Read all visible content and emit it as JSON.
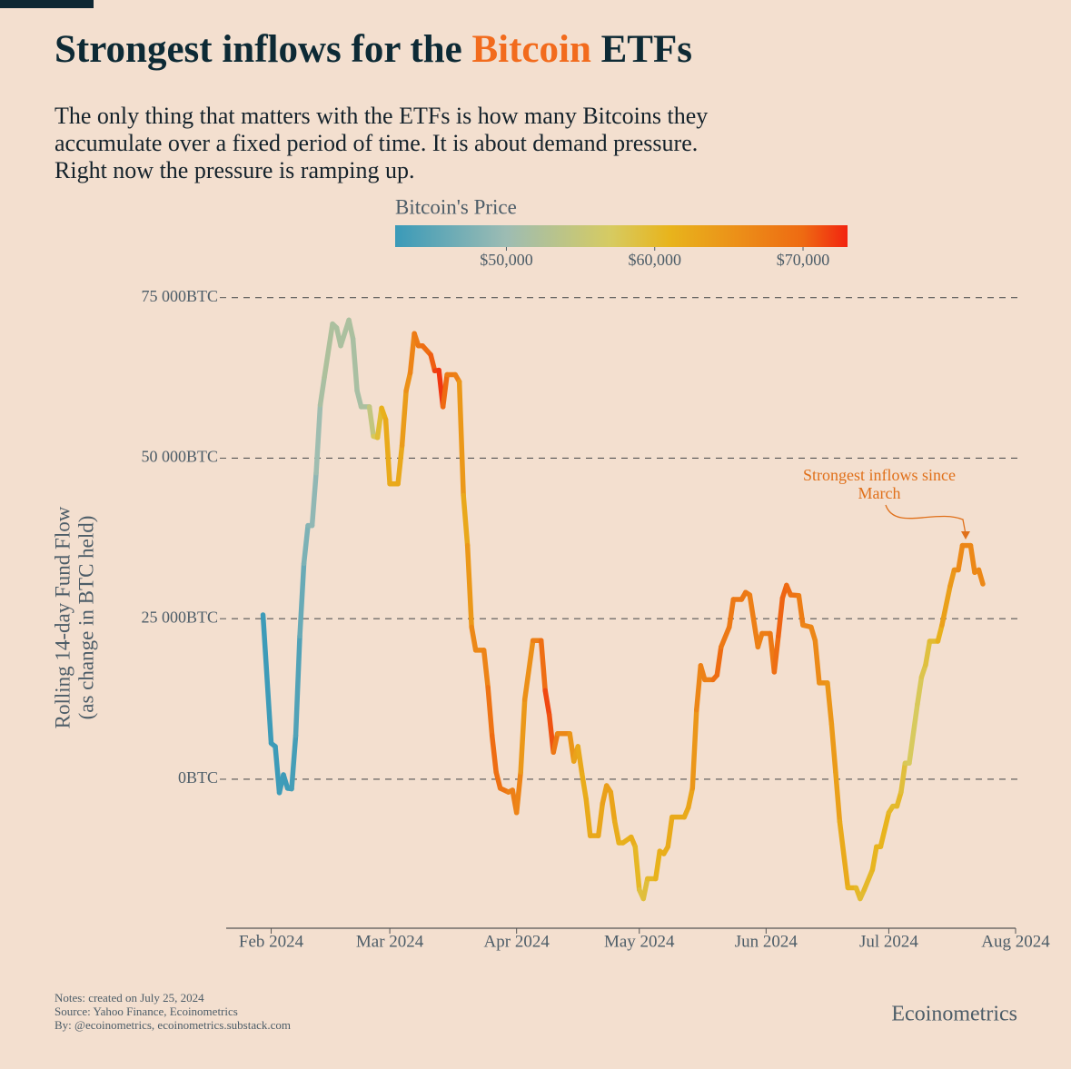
{
  "chart_data": {
    "type": "line",
    "title": [
      "Strongest inflows for the",
      "Bitcoin",
      "ETFs"
    ],
    "subtitle": [
      "The only thing that matters with the ETFs is how many Bitcoins they",
      "accumulate over a fixed period of time. It is about demand pressure.",
      "Right now the pressure is ramping up."
    ],
    "y_label": [
      "Rolling 14-day Fund Flow",
      "(as change in BTC held)"
    ],
    "colorbar_title": "Bitcoin's Price",
    "color_stops": [
      [
        42500,
        "#3a9ab8"
      ],
      [
        50000,
        "#9dbcb3"
      ],
      [
        57000,
        "#d6cb62"
      ],
      [
        61000,
        "#e8b41c"
      ],
      [
        66000,
        "#ec8c18"
      ],
      [
        70000,
        "#ee6a12"
      ],
      [
        73000,
        "#f22410"
      ]
    ],
    "color_lim": [
      42500,
      73000
    ],
    "color_ticks": [
      {
        "value": 50000,
        "label": "$50,000"
      },
      {
        "value": 60000,
        "label": "$60,000"
      },
      {
        "value": 70000,
        "label": "$70,000"
      }
    ],
    "annotation": [
      "Strongest inflows since",
      "March"
    ],
    "notes": [
      "Notes: created on July 25, 2024",
      "Source: Yahoo Finance, Ecoinometrics",
      "By: @ecoinometrics, ecoinometrics.substack.com"
    ],
    "brand": "Ecoinometrics",
    "xlim": [
      21,
      214
    ],
    "xticks": [
      {
        "value": 32,
        "label": "Feb 2024"
      },
      {
        "value": 61,
        "label": "Mar 2024"
      },
      {
        "value": 92,
        "label": "Apr 2024"
      },
      {
        "value": 122,
        "label": "May 2024"
      },
      {
        "value": 153,
        "label": "Jun 2024"
      },
      {
        "value": 183,
        "label": "Jul 2024"
      },
      {
        "value": 214,
        "label": "Aug 2024"
      }
    ],
    "ylim": [
      -23200,
      77500
    ],
    "yticks": [
      {
        "value": 0,
        "label": "0BTC"
      },
      {
        "value": 25000,
        "label": "25 000BTC"
      },
      {
        "value": 50000,
        "label": "50 000BTC"
      },
      {
        "value": 75000,
        "label": "75 000BTC"
      }
    ],
    "grid": true,
    "x": [
      30,
      32,
      33,
      34,
      35,
      36,
      37,
      38,
      39,
      40,
      41,
      42,
      43,
      44,
      45,
      47,
      48,
      49,
      51,
      52,
      53,
      54,
      56,
      57,
      58,
      59,
      60,
      61,
      63,
      64,
      65,
      66,
      67,
      68,
      69,
      71,
      72,
      73,
      74,
      75,
      77,
      78,
      79,
      80,
      81,
      82,
      84,
      85,
      86,
      87,
      88,
      90,
      91,
      92,
      93,
      94,
      96,
      98,
      99,
      100,
      101,
      102,
      105,
      106,
      107,
      108,
      109,
      110,
      112,
      113,
      114,
      115,
      116,
      117,
      118,
      120,
      121,
      122,
      123,
      124,
      126,
      127,
      128,
      129,
      130,
      133,
      134,
      135,
      136,
      137,
      138,
      140,
      141,
      142,
      144,
      145,
      147,
      148,
      149,
      151,
      152,
      154,
      155,
      156,
      157,
      158,
      159,
      161,
      162,
      164,
      165,
      166,
      168,
      169,
      170,
      171,
      173,
      175,
      176,
      177,
      179,
      180,
      181,
      183,
      184,
      185,
      186,
      187,
      188,
      190,
      191,
      192,
      193,
      195,
      196,
      198,
      199,
      200,
      201,
      203,
      204,
      205,
      206
    ],
    "values": [
      25600,
      5600,
      5100,
      -2100,
      700,
      -1400,
      -1500,
      6800,
      22300,
      33600,
      39500,
      39500,
      47700,
      58300,
      62600,
      70900,
      70300,
      67500,
      71500,
      68600,
      60500,
      58000,
      58000,
      53400,
      53200,
      57800,
      56000,
      46000,
      46000,
      52000,
      60500,
      63300,
      69400,
      67500,
      67500,
      66100,
      63600,
      63700,
      58000,
      63000,
      63000,
      61900,
      44200,
      36400,
      23700,
      20100,
      20100,
      14300,
      6800,
      1100,
      -1400,
      -2000,
      -1700,
      -5200,
      1100,
      12400,
      21600,
      21600,
      13800,
      10000,
      4200,
      7100,
      7100,
      2800,
      5100,
      800,
      -3100,
      -8800,
      -8800,
      -3800,
      -1000,
      -2000,
      -6600,
      -9900,
      -9900,
      -9000,
      -10500,
      -17200,
      -18600,
      -15500,
      -15500,
      -11200,
      -11600,
      -10500,
      -5900,
      -5900,
      -4400,
      -1400,
      10800,
      17700,
      15500,
      15500,
      16200,
      20600,
      23700,
      28000,
      28000,
      29100,
      28700,
      20600,
      22700,
      22700,
      16700,
      22300,
      28200,
      30200,
      28700,
      28600,
      24000,
      23700,
      21600,
      15000,
      15000,
      8600,
      1100,
      -6600,
      -16900,
      -16900,
      -18600,
      -17200,
      -14100,
      -10500,
      -10500,
      -5200,
      -4200,
      -4200,
      -2000,
      2500,
      2500,
      11700,
      15900,
      17800,
      21500,
      21500,
      24000,
      30100,
      32600,
      32600,
      36400,
      36400,
      32200,
      32600,
      30400
    ],
    "color_values": [
      43000,
      42500,
      42800,
      42700,
      43000,
      42600,
      43200,
      43500,
      45000,
      47000,
      48000,
      48500,
      49500,
      51000,
      52000,
      52000,
      51500,
      52000,
      51500,
      52000,
      51000,
      51500,
      52000,
      57000,
      58000,
      61000,
      62000,
      62500,
      62000,
      63000,
      65000,
      66000,
      68000,
      68000,
      69000,
      70000,
      71000,
      72500,
      72000,
      68000,
      68000,
      67000,
      62000,
      63000,
      66000,
      67000,
      66000,
      68000,
      70000,
      69500,
      69000,
      68500,
      66000,
      69000,
      65000,
      64000,
      67000,
      68000,
      71000,
      72000,
      70000,
      67000,
      66000,
      63500,
      63000,
      62000,
      62000,
      62500,
      62500,
      63000,
      64000,
      63500,
      62500,
      61500,
      61000,
      62000,
      61500,
      59500,
      58500,
      60000,
      60500,
      62000,
      61500,
      62000,
      62500,
      62000,
      62500,
      63500,
      66000,
      67500,
      67000,
      67500,
      71000,
      68500,
      68000,
      68500,
      68000,
      68500,
      68000,
      67000,
      67500,
      68000,
      68500,
      70500,
      70000,
      70500,
      69500,
      68500,
      67000,
      67000,
      66500,
      66000,
      65000,
      64500,
      64000,
      63000,
      61500,
      61000,
      59500,
      60000,
      60500,
      61000,
      61000,
      61000,
      59500,
      60000,
      60500,
      58000,
      57500,
      57000,
      58000,
      58500,
      59500,
      60000,
      63000,
      64000,
      65000,
      66000,
      66500,
      67000,
      66000,
      67000,
      66000
    ]
  }
}
